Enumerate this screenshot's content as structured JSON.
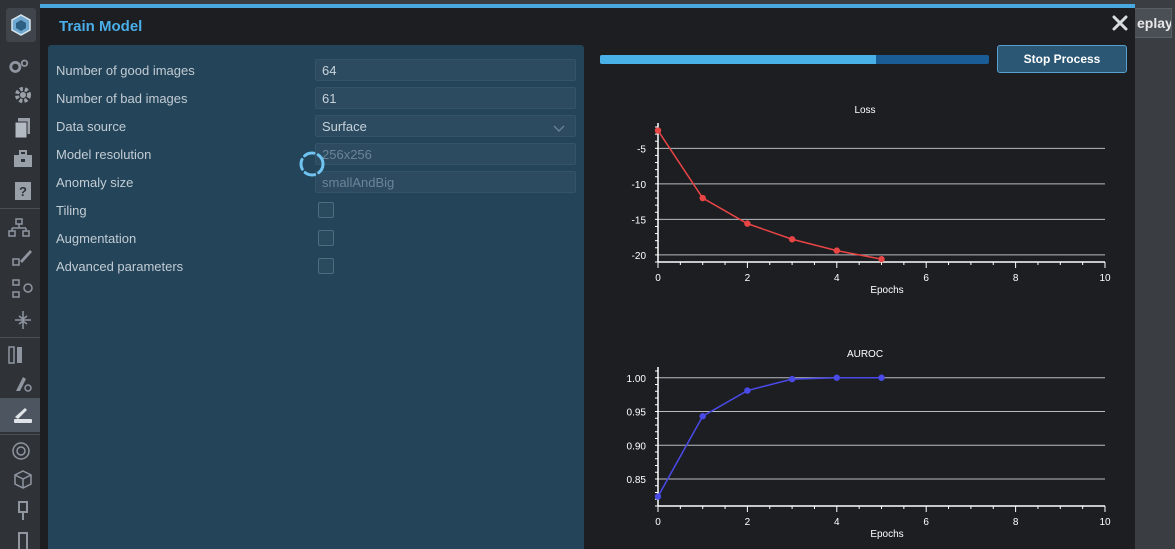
{
  "app": {
    "top_right_tab": "eplay"
  },
  "dialog": {
    "title": "Train Model",
    "stop_button": "Stop Process",
    "progress": 0.71
  },
  "params": {
    "good_images": {
      "label": "Number of good images",
      "value": "64"
    },
    "bad_images": {
      "label": "Number of bad images",
      "value": "61"
    },
    "data_source": {
      "label": "Data source",
      "value": "Surface"
    },
    "resolution": {
      "label": "Model resolution",
      "value": "256x256"
    },
    "anomaly_size": {
      "label": "Anomaly size",
      "value": "smallAndBig"
    },
    "tiling": {
      "label": "Tiling",
      "checked": false
    },
    "augmentation": {
      "label": "Augmentation",
      "checked": false
    },
    "advanced": {
      "label": "Advanced parameters",
      "checked": false
    }
  },
  "chart_data": [
    {
      "type": "line",
      "title": "Loss",
      "xlabel": "Epochs",
      "ylabel": "",
      "xlim": [
        0,
        10
      ],
      "ylim": [
        -21,
        -2
      ],
      "xticks": [
        0,
        2,
        4,
        6,
        8,
        10
      ],
      "yticks": [
        -5,
        -10,
        -15,
        -20
      ],
      "grid": true,
      "color": "#e84545",
      "series": [
        {
          "x": [
            0,
            1,
            2,
            3,
            4,
            5
          ],
          "values": [
            -2.5,
            -12.0,
            -15.6,
            -17.8,
            -19.4,
            -20.6
          ]
        }
      ]
    },
    {
      "type": "line",
      "title": "AUROC",
      "xlabel": "Epochs",
      "ylabel": "",
      "xlim": [
        0,
        10
      ],
      "ylim": [
        0.81,
        1.01
      ],
      "xticks": [
        0,
        2,
        4,
        6,
        8,
        10
      ],
      "yticks": [
        1.0,
        0.95,
        0.9,
        0.85
      ],
      "ytick_labels": [
        "1.00",
        "0.95",
        "0.90",
        "0.85"
      ],
      "grid": true,
      "color": "#4a4ae8",
      "series": [
        {
          "x": [
            0,
            1,
            2,
            3,
            4,
            5
          ],
          "values": [
            0.824,
            0.943,
            0.981,
            0.998,
            1.0,
            1.0
          ]
        }
      ]
    }
  ]
}
